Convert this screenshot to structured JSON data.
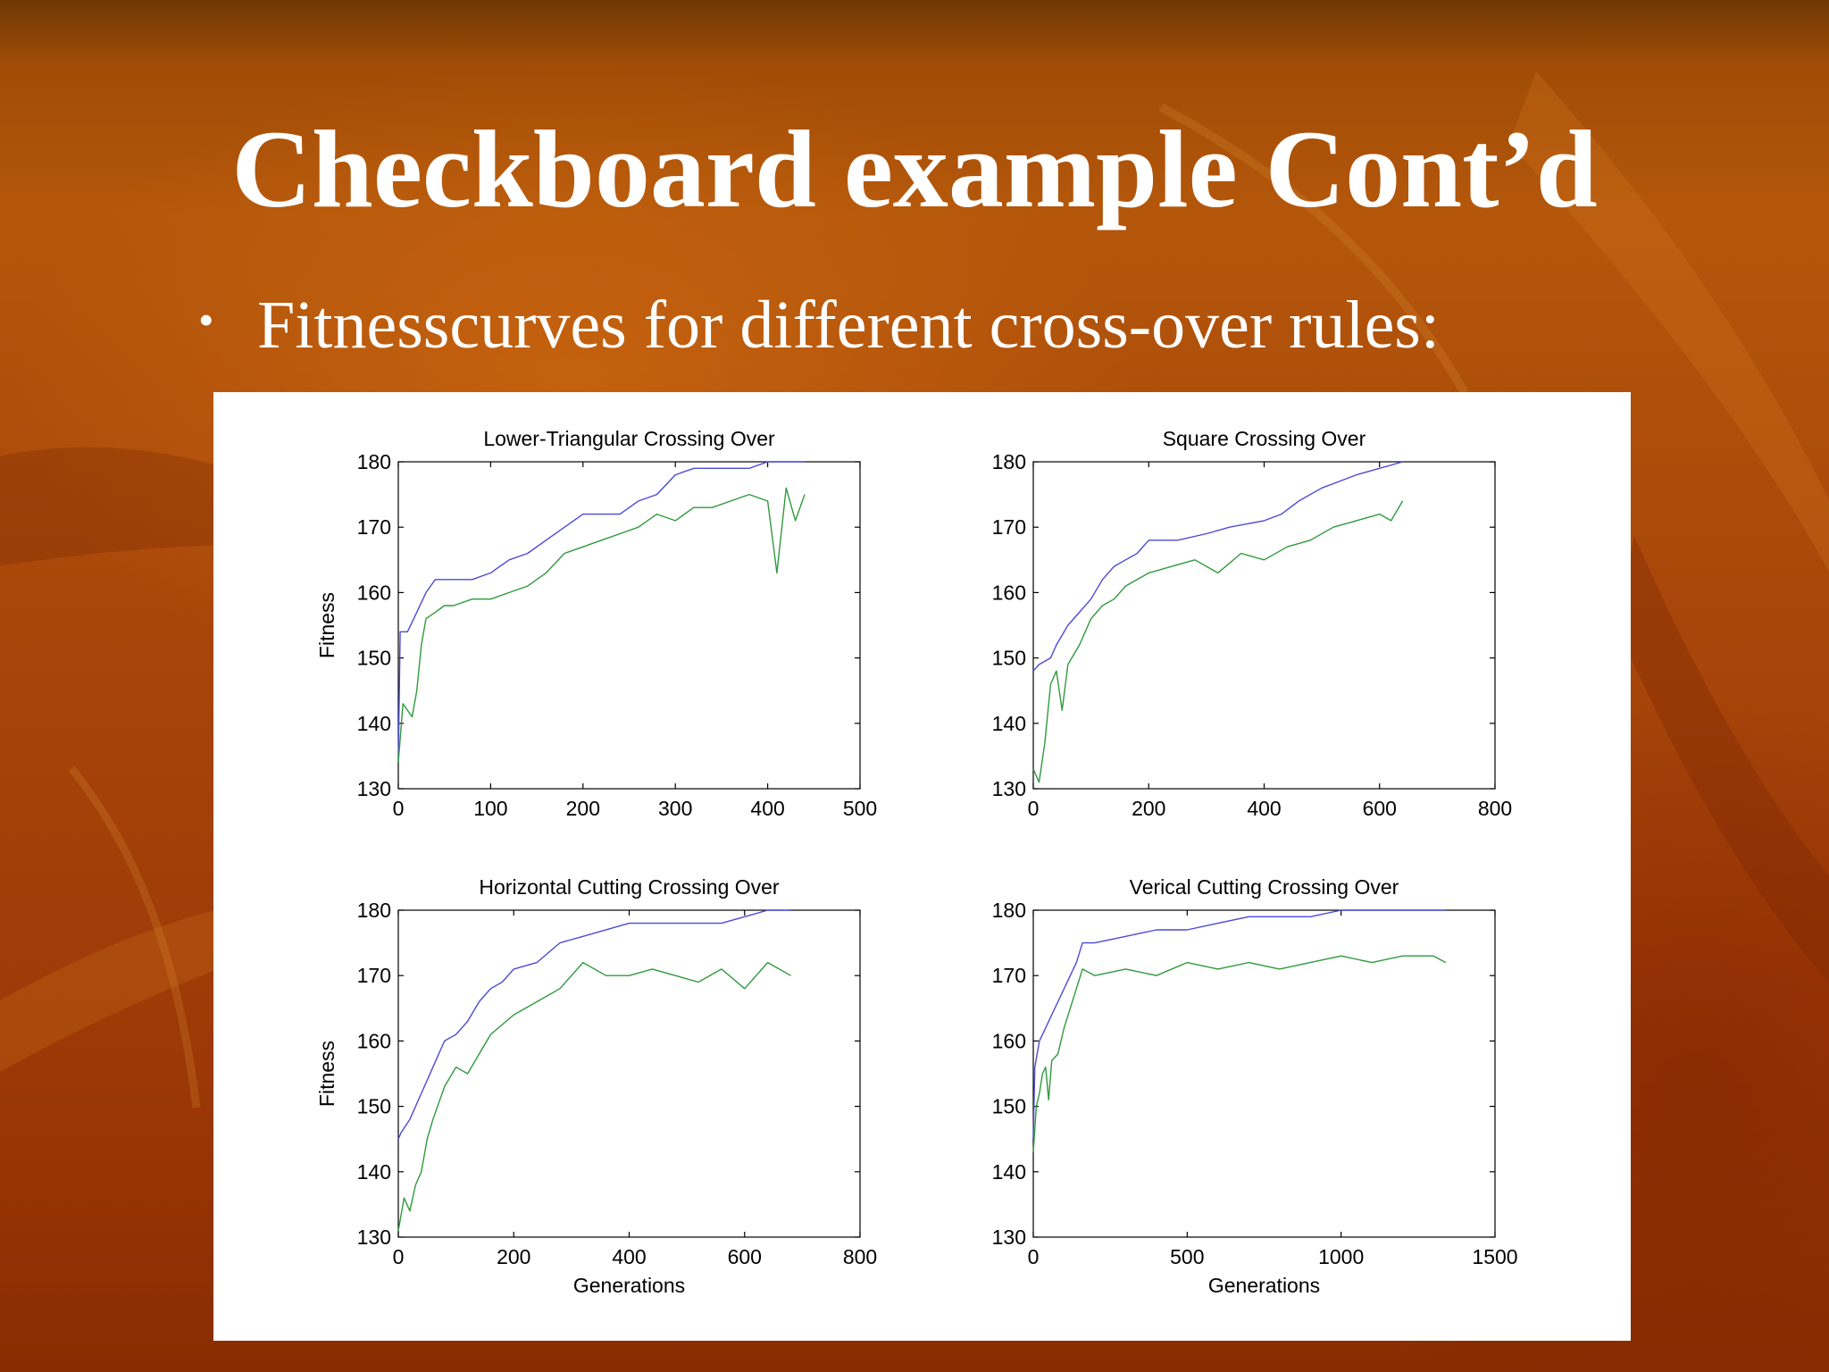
{
  "slide": {
    "title": "Checkboard example Cont’d",
    "bullet_symbol": "•",
    "bullet_text": "Fitnesscurves for different cross-over rules:"
  },
  "colors": {
    "max_line": "#4b4bd6",
    "mean_line": "#2f9a3c",
    "axes": "#000000"
  },
  "chart_data": [
    {
      "type": "line",
      "title": "Lower-Triangular Crossing Over",
      "xlabel": "",
      "ylabel": "Fitness",
      "xlim": [
        0,
        500
      ],
      "ylim": [
        130,
        180
      ],
      "xticks": [
        0,
        100,
        200,
        300,
        400,
        500
      ],
      "yticks": [
        130,
        140,
        150,
        160,
        170,
        180
      ],
      "series": [
        {
          "x": [
            0,
            2,
            10,
            20,
            30,
            40,
            60,
            80,
            100,
            120,
            140,
            160,
            180,
            200,
            220,
            240,
            260,
            280,
            300,
            320,
            340,
            360,
            380,
            400,
            420,
            440
          ],
          "values": [
            134,
            154,
            154,
            157,
            160,
            162,
            162,
            162,
            163,
            165,
            166,
            168,
            170,
            172,
            172,
            172,
            174,
            175,
            178,
            179,
            179,
            179,
            179,
            180,
            180,
            180
          ]
        },
        {
          "x": [
            0,
            5,
            10,
            15,
            20,
            25,
            30,
            40,
            50,
            60,
            80,
            100,
            120,
            140,
            160,
            180,
            200,
            220,
            240,
            260,
            280,
            300,
            320,
            340,
            360,
            380,
            400,
            410,
            420,
            430,
            440
          ],
          "values": [
            134,
            143,
            142,
            141,
            145,
            152,
            156,
            157,
            158,
            158,
            159,
            159,
            160,
            161,
            163,
            166,
            167,
            168,
            169,
            170,
            172,
            171,
            173,
            173,
            174,
            175,
            174,
            163,
            176,
            171,
            175
          ]
        }
      ]
    },
    {
      "type": "line",
      "title": "Square Crossing Over",
      "xlabel": "",
      "ylabel": "",
      "xlim": [
        0,
        800
      ],
      "ylim": [
        130,
        180
      ],
      "xticks": [
        0,
        200,
        400,
        600,
        800
      ],
      "yticks": [
        130,
        140,
        150,
        160,
        170,
        180
      ],
      "series": [
        {
          "x": [
            0,
            10,
            30,
            40,
            60,
            80,
            100,
            120,
            140,
            160,
            180,
            200,
            250,
            300,
            340,
            400,
            430,
            460,
            500,
            530,
            560,
            600,
            640
          ],
          "values": [
            148,
            149,
            150,
            152,
            155,
            157,
            159,
            162,
            164,
            165,
            166,
            168,
            168,
            169,
            170,
            171,
            172,
            174,
            176,
            177,
            178,
            179,
            180
          ]
        },
        {
          "x": [
            0,
            10,
            20,
            30,
            40,
            50,
            60,
            80,
            100,
            120,
            140,
            160,
            200,
            240,
            280,
            320,
            360,
            400,
            440,
            480,
            520,
            560,
            600,
            620,
            640
          ],
          "values": [
            133,
            131,
            137,
            146,
            148,
            142,
            149,
            152,
            156,
            158,
            159,
            161,
            163,
            164,
            165,
            163,
            166,
            165,
            167,
            168,
            170,
            171,
            172,
            171,
            174
          ]
        }
      ]
    },
    {
      "type": "line",
      "title": "Horizontal Cutting Crossing Over",
      "xlabel": "Generations",
      "ylabel": "Fitness",
      "xlim": [
        0,
        800
      ],
      "ylim": [
        130,
        180
      ],
      "xticks": [
        0,
        200,
        400,
        600,
        800
      ],
      "yticks": [
        130,
        140,
        150,
        160,
        170,
        180
      ],
      "series": [
        {
          "x": [
            0,
            5,
            20,
            40,
            60,
            80,
            100,
            120,
            140,
            160,
            180,
            200,
            240,
            280,
            320,
            400,
            480,
            560,
            600,
            640,
            680
          ],
          "values": [
            145,
            146,
            148,
            152,
            156,
            160,
            161,
            163,
            166,
            168,
            169,
            171,
            172,
            175,
            176,
            178,
            178,
            178,
            179,
            180,
            180
          ]
        },
        {
          "x": [
            0,
            10,
            20,
            30,
            40,
            50,
            60,
            80,
            100,
            120,
            140,
            160,
            200,
            240,
            280,
            320,
            360,
            400,
            440,
            480,
            520,
            560,
            600,
            640,
            680
          ],
          "values": [
            131,
            136,
            134,
            138,
            140,
            145,
            148,
            153,
            156,
            155,
            158,
            161,
            164,
            166,
            168,
            172,
            170,
            170,
            171,
            170,
            169,
            171,
            168,
            172,
            170
          ]
        }
      ]
    },
    {
      "type": "line",
      "title": "Verical Cutting Crossing Over",
      "xlabel": "Generations",
      "ylabel": "",
      "xlim": [
        0,
        1500
      ],
      "ylim": [
        130,
        180
      ],
      "xticks": [
        0,
        500,
        1000,
        1500
      ],
      "yticks": [
        130,
        140,
        150,
        160,
        170,
        180
      ],
      "series": [
        {
          "x": [
            0,
            5,
            20,
            40,
            60,
            80,
            100,
            120,
            140,
            160,
            200,
            300,
            400,
            500,
            600,
            700,
            800,
            900,
            1000,
            1100,
            1200,
            1340
          ],
          "values": [
            145,
            156,
            160,
            162,
            164,
            166,
            168,
            170,
            172,
            175,
            175,
            176,
            177,
            177,
            178,
            179,
            179,
            179,
            180,
            180,
            180,
            180
          ]
        },
        {
          "x": [
            0,
            10,
            20,
            30,
            40,
            50,
            60,
            80,
            100,
            120,
            140,
            160,
            200,
            300,
            400,
            500,
            600,
            700,
            800,
            900,
            1000,
            1100,
            1200,
            1300,
            1340
          ],
          "values": [
            143,
            150,
            152,
            155,
            156,
            151,
            157,
            158,
            162,
            165,
            168,
            171,
            170,
            171,
            170,
            172,
            171,
            172,
            171,
            172,
            173,
            172,
            173,
            173,
            172
          ]
        }
      ]
    }
  ]
}
